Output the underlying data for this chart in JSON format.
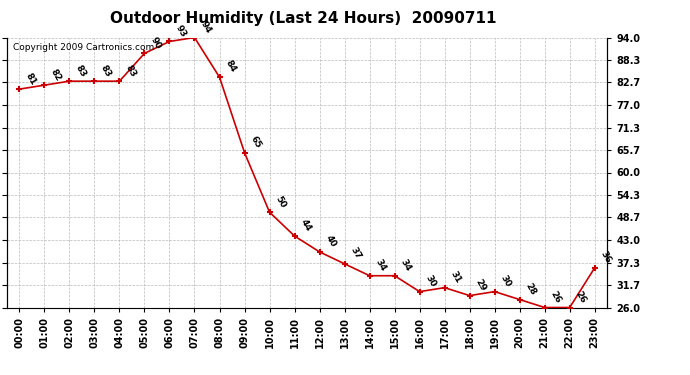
{
  "title": "Outdoor Humidity (Last 24 Hours)  20090711",
  "copyright": "Copyright 2009 Cartronics.com",
  "hours": [
    "00:00",
    "01:00",
    "02:00",
    "03:00",
    "04:00",
    "05:00",
    "06:00",
    "07:00",
    "08:00",
    "09:00",
    "10:00",
    "11:00",
    "12:00",
    "13:00",
    "14:00",
    "15:00",
    "16:00",
    "17:00",
    "18:00",
    "19:00",
    "20:00",
    "21:00",
    "22:00",
    "23:00"
  ],
  "values": [
    81,
    82,
    83,
    83,
    83,
    90,
    93,
    94,
    84,
    65,
    50,
    44,
    40,
    37,
    34,
    34,
    30,
    31,
    29,
    30,
    28,
    26,
    26,
    36
  ],
  "line_color": "#cc0000",
  "marker_color": "#cc0000",
  "bg_color": "#ffffff",
  "grid_color": "#bbbbbb",
  "ylim_min": 26.0,
  "ylim_max": 94.0,
  "yticks": [
    26.0,
    31.7,
    37.3,
    43.0,
    48.7,
    54.3,
    60.0,
    65.7,
    71.3,
    77.0,
    82.7,
    88.3,
    94.0
  ],
  "title_fontsize": 11,
  "label_fontsize": 6.5,
  "tick_fontsize": 7,
  "copyright_fontsize": 6.5
}
